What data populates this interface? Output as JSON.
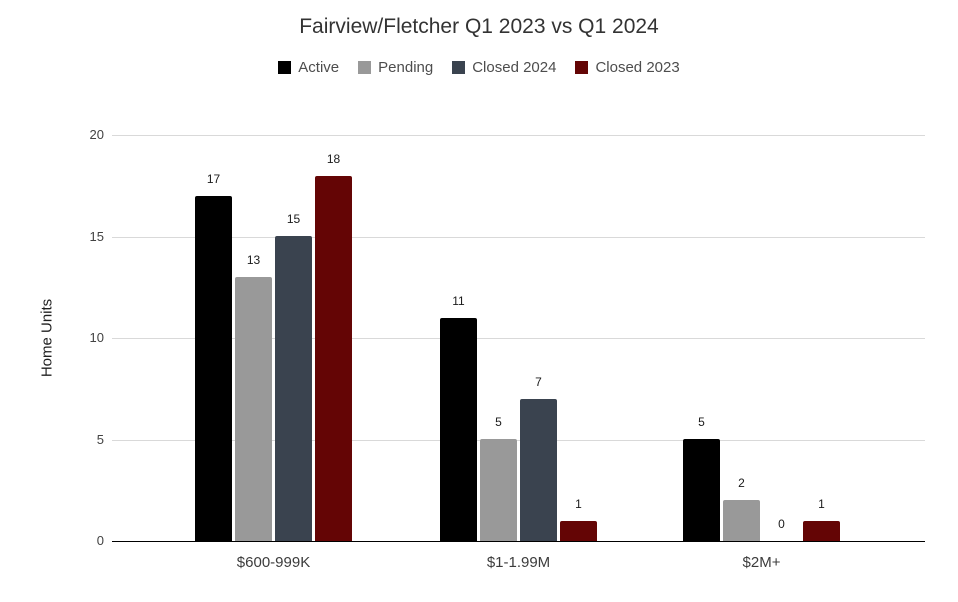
{
  "chart_data": {
    "type": "bar",
    "title": "Fairview/Fletcher Q1 2023 vs Q1 2024",
    "ylabel": "Home Units",
    "xlabel": "",
    "categories": [
      "$600-999K",
      "$1-1.99M",
      "$2M+"
    ],
    "series": [
      {
        "name": "Active",
        "color": "#000000",
        "values": [
          17,
          11,
          5
        ]
      },
      {
        "name": "Pending",
        "color": "#999999",
        "values": [
          13,
          5,
          2
        ]
      },
      {
        "name": "Closed 2024",
        "color": "#3a434f",
        "values": [
          15,
          7,
          0
        ]
      },
      {
        "name": "Closed 2023",
        "color": "#640505",
        "values": [
          18,
          1,
          1
        ]
      }
    ],
    "ylim": [
      0,
      20
    ],
    "yticks": [
      0,
      5,
      10,
      15,
      20
    ],
    "grid": true,
    "legend_position": "top",
    "data_labels": true
  }
}
